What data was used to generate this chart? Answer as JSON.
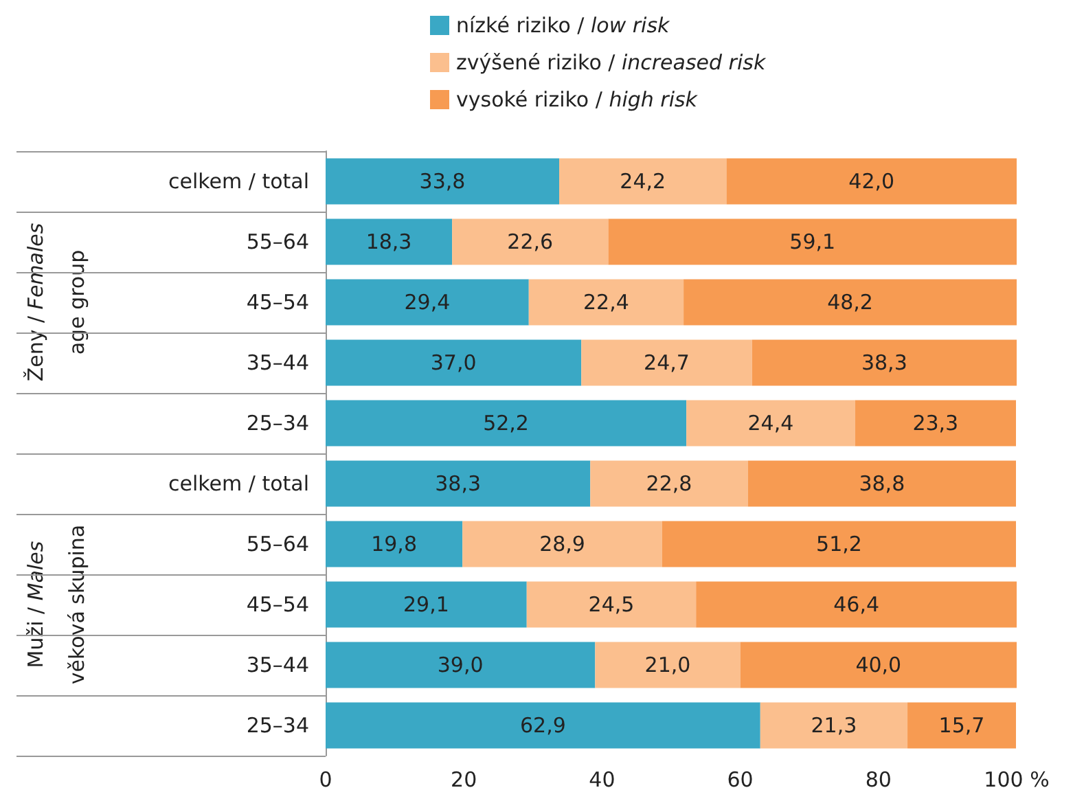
{
  "chart_data": {
    "type": "bar",
    "orientation": "horizontal",
    "stacked": true,
    "categories": [
      "celkem / total",
      "55–64",
      "45–54",
      "35–44",
      "25–34",
      "celkem / total",
      "55–64",
      "45–54",
      "35–44",
      "25–34"
    ],
    "series": [
      {
        "name": "nízké riziko / low risk",
        "color": "#3aa8c5",
        "values": [
          33.8,
          18.3,
          29.4,
          37.0,
          52.2,
          38.3,
          19.8,
          29.1,
          39.0,
          62.9
        ],
        "value_labels": [
          "33,8",
          "18,3",
          "29,4",
          "37,0",
          "52,2",
          "38,3",
          "19,8",
          "29,1",
          "39,0",
          "62,9"
        ]
      },
      {
        "name": "zvýšené riziko / increased risk",
        "color": "#fbbf8e",
        "values": [
          24.2,
          22.6,
          22.4,
          24.7,
          24.4,
          22.8,
          28.9,
          24.5,
          21.0,
          21.3
        ],
        "value_labels": [
          "24,2",
          "22,6",
          "22,4",
          "24,7",
          "24,4",
          "22,8",
          "28,9",
          "24,5",
          "21,0",
          "21,3"
        ]
      },
      {
        "name": "vysoké riziko / high risk",
        "color": "#f79b52",
        "values": [
          42.0,
          59.1,
          48.2,
          38.3,
          23.3,
          38.8,
          51.2,
          46.4,
          40.0,
          15.7
        ],
        "value_labels": [
          "42,0",
          "59,1",
          "48,2",
          "38,3",
          "23,3",
          "38,8",
          "51,2",
          "46,4",
          "40,0",
          "15,7"
        ]
      }
    ],
    "xlim": [
      0,
      100
    ],
    "xticks": [
      0,
      20,
      40,
      60,
      80,
      {
        "value": 100,
        "label": "100 %"
      }
    ],
    "legend": "top",
    "grid": false,
    "annotations": [
      "Ženy / Females",
      "age group",
      "Muži / Males",
      "věková skupina"
    ]
  }
}
